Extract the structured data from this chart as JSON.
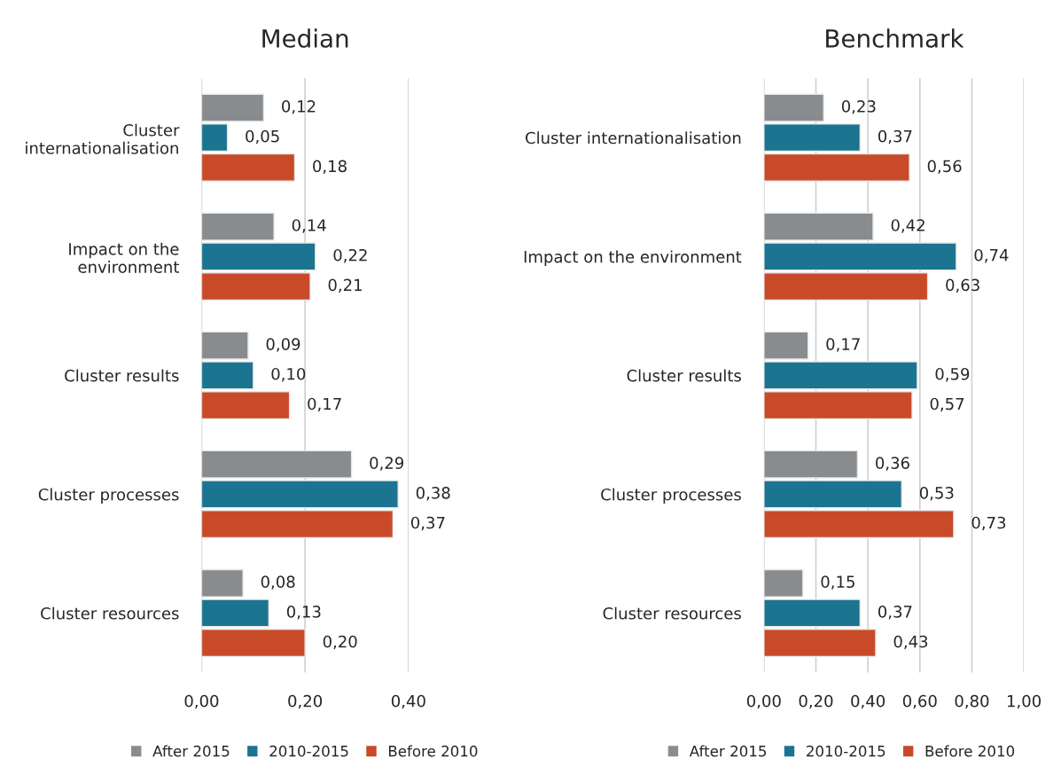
{
  "chart_data": [
    {
      "type": "bar",
      "orientation": "horizontal",
      "title": "Median",
      "categories": [
        "Cluster internationalisation",
        "Impact on the environment",
        "Cluster results",
        "Cluster processes",
        "Cluster resources"
      ],
      "series": [
        {
          "name": "After 2015",
          "color": "#898c8e",
          "values": [
            0.12,
            0.14,
            0.09,
            0.29,
            0.08
          ],
          "value_labels": [
            "0,12",
            "0,14",
            "0,09",
            "0,29",
            "0,08"
          ]
        },
        {
          "name": "2010-2015",
          "color": "#1b7490",
          "values": [
            0.05,
            0.22,
            0.1,
            0.38,
            0.13
          ],
          "value_labels": [
            "0,05",
            "0,22",
            "0,10",
            "0,38",
            "0,13"
          ]
        },
        {
          "name": "Before 2010",
          "color": "#c94a28",
          "values": [
            0.18,
            0.21,
            0.17,
            0.37,
            0.2
          ],
          "value_labels": [
            "0,18",
            "0,21",
            "0,17",
            "0,37",
            "0,20"
          ]
        }
      ],
      "xlim": [
        0,
        0.4
      ],
      "xticks": [
        {
          "value": 0,
          "label": "0,00"
        },
        {
          "value": 0.2,
          "label": "0,20"
        },
        {
          "value": 0.4,
          "label": "0,40"
        }
      ],
      "grid": "x",
      "legend": "bottom"
    },
    {
      "type": "bar",
      "orientation": "horizontal",
      "title": "Benchmark",
      "categories": [
        "Cluster internationalisation",
        "Impact on the environment",
        "Cluster results",
        "Cluster processes",
        "Cluster resources"
      ],
      "series": [
        {
          "name": "After 2015",
          "color": "#898c8e",
          "values": [
            0.23,
            0.42,
            0.17,
            0.36,
            0.15
          ],
          "value_labels": [
            "0,23",
            "0,42",
            "0,17",
            "0,36",
            "0,15"
          ]
        },
        {
          "name": "2010-2015",
          "color": "#1b7490",
          "values": [
            0.37,
            0.74,
            0.59,
            0.53,
            0.37
          ],
          "value_labels": [
            "0,37",
            "0,74",
            "0,59",
            "0,53",
            "0,37"
          ]
        },
        {
          "name": "Before 2010",
          "color": "#c94a28",
          "values": [
            0.56,
            0.63,
            0.57,
            0.73,
            0.43
          ],
          "value_labels": [
            "0,56",
            "0,63",
            "0,57",
            "0,73",
            "0,43"
          ]
        }
      ],
      "xlim": [
        0,
        1.0
      ],
      "xticks": [
        {
          "value": 0,
          "label": "0,00"
        },
        {
          "value": 0.2,
          "label": "0,20"
        },
        {
          "value": 0.4,
          "label": "0,40"
        },
        {
          "value": 0.6,
          "label": "0,60"
        },
        {
          "value": 0.8,
          "label": "0,80"
        },
        {
          "value": 1.0,
          "label": "1,00"
        }
      ],
      "grid": "x",
      "legend": "bottom"
    }
  ]
}
